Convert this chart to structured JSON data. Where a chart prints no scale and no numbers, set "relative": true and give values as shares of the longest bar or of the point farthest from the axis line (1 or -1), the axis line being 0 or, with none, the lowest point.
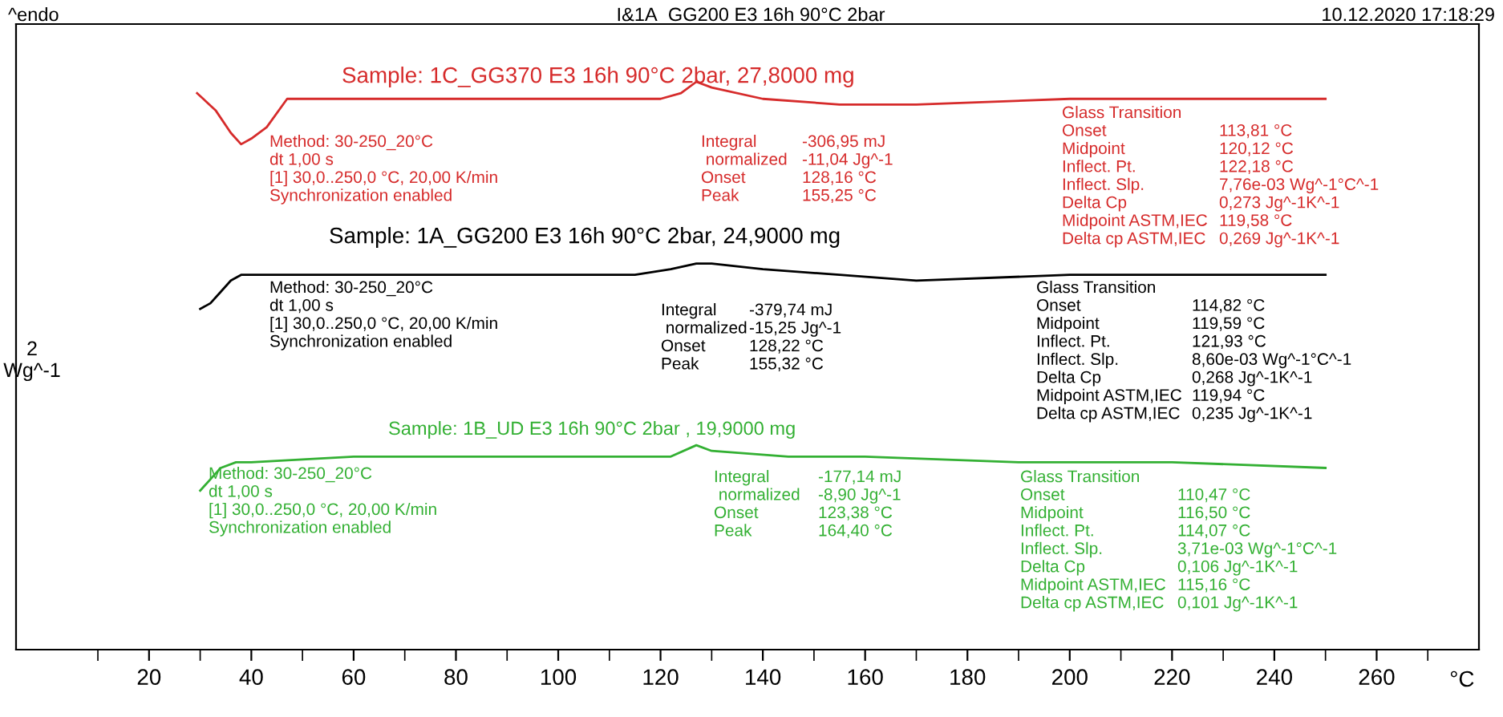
{
  "chart_data": {
    "type": "line",
    "relative": true,
    "title": "I&1A_GG200 E3 16h 90°C 2bar",
    "xlabel": "°C",
    "ylabel": "2\nWg^-1",
    "xlim": [
      -6,
      280
    ],
    "xticks": [
      {
        "value": 10,
        "label": null
      },
      20,
      {
        "value": 30,
        "label": null
      },
      40,
      {
        "value": 50,
        "label": null
      },
      60,
      {
        "value": 70,
        "label": null
      },
      80,
      {
        "value": 90,
        "label": null
      },
      100,
      {
        "value": 110,
        "label": null
      },
      120,
      {
        "value": 130,
        "label": null
      },
      140,
      {
        "value": 150,
        "label": null
      },
      160,
      {
        "value": 170,
        "label": null
      },
      180,
      {
        "value": 190,
        "label": null
      },
      200,
      {
        "value": 210,
        "label": null
      },
      220,
      {
        "value": 230,
        "label": null
      },
      240,
      {
        "value": 250,
        "label": null
      },
      260,
      {
        "value": 270,
        "label": null
      }
    ],
    "grid": false,
    "legend": false,
    "marker": "none",
    "line_style": "solid",
    "series": [
      {
        "name": "Sample: 1C_GG370 E3 16h 90°C 2bar, 27,8000 mg",
        "color": "#d62b2b",
        "x": [
          29.4,
          33,
          36,
          38,
          40,
          43,
          47,
          55,
          80,
          110,
          120,
          124,
          127,
          130,
          140,
          155,
          170,
          200,
          230,
          250
        ],
        "values": [
          0.98,
          0.95,
          0.91,
          0.89,
          0.9,
          0.92,
          0.97,
          0.97,
          0.97,
          0.97,
          0.97,
          0.98,
          1.0,
          0.99,
          0.97,
          0.96,
          0.96,
          0.97,
          0.97,
          0.97
        ]
      },
      {
        "name": "Sample: 1A_GG200 E3 16h 90°C 2bar, 24,9000 mg",
        "color": "#000000",
        "x": [
          30,
          32,
          34,
          36,
          38,
          41,
          60,
          90,
          115,
          122,
          127,
          130,
          140,
          155,
          170,
          200,
          230,
          250
        ],
        "values": [
          0.6,
          0.61,
          0.63,
          0.65,
          0.66,
          0.66,
          0.66,
          0.66,
          0.66,
          0.67,
          0.68,
          0.68,
          0.67,
          0.66,
          0.65,
          0.66,
          0.66,
          0.66
        ]
      },
      {
        "name": "Sample: 1B_UD E3 16h 90°C 2bar , 19,9000 mg",
        "color": "#33b033",
        "x": [
          30,
          32,
          34,
          37,
          40,
          60,
          90,
          115,
          122,
          127,
          130,
          145,
          160,
          190,
          220,
          250
        ],
        "values": [
          0.28,
          0.3,
          0.32,
          0.33,
          0.33,
          0.34,
          0.34,
          0.34,
          0.34,
          0.36,
          0.35,
          0.34,
          0.34,
          0.33,
          0.33,
          0.32
        ]
      }
    ],
    "annotations": [
      "^endo",
      "10.12.2020 17:18:29",
      "Method: 30-250_20°C\ndt 1,00 s\n[1] 30,0..250,0 °C, 20,00 K/min\nSynchronization enabled",
      "Integral\n normalized\nOnset\nPeak",
      "-306,95 mJ\n-11,04 Jg^-1\n128,16 °C\n155,25 °C",
      "Glass Transition\nOnset\nMidpoint\nInflect. Pt.\nInflect. Slp.\nDelta Cp\nMidpoint ASTM,IEC\nDelta cp ASTM,IEC",
      "\n113,81 °C\n120,12 °C\n122,18 °C\n7,76e-03 Wg^-1°C^-1\n0,273 Jg^-1K^-1\n119,58 °C\n0,269 Jg^-1K^-1",
      "Method: 30-250_20°C\ndt 1,00 s\n[1] 30,0..250,0 °C, 20,00 K/min\nSynchronization enabled",
      "Integral\n normalized\nOnset\nPeak",
      "-379,74 mJ\n-15,25 Jg^-1\n128,22 °C\n155,32 °C",
      "Glass Transition\nOnset\nMidpoint\nInflect. Pt.\nInflect. Slp.\nDelta Cp\nMidpoint ASTM,IEC\nDelta cp ASTM,IEC",
      "\n114,82 °C\n119,59 °C\n121,93 °C\n8,60e-03 Wg^-1°C^-1\n0,268 Jg^-1K^-1\n119,94 °C\n0,235 Jg^-1K^-1",
      "Method: 30-250_20°C\ndt 1,00 s\n[1] 30,0..250,0 °C, 20,00 K/min\nSynchronization enabled",
      "Integral\n normalized\nOnset\nPeak",
      "-177,14 mJ\n-8,90 Jg^-1\n123,38 °C\n164,40 °C",
      "Glass Transition\nOnset\nMidpoint\nInflect. Pt.\nInflect. Slp.\nDelta Cp\nMidpoint ASTM,IEC\nDelta cp ASTM,IEC",
      "\n110,47 °C\n116,50 °C\n114,07 °C\n3,71e-03 Wg^-1°C^-1\n0,106 Jg^-1K^-1\n115,16 °C\n0,101 Jg^-1K^-1"
    ]
  }
}
